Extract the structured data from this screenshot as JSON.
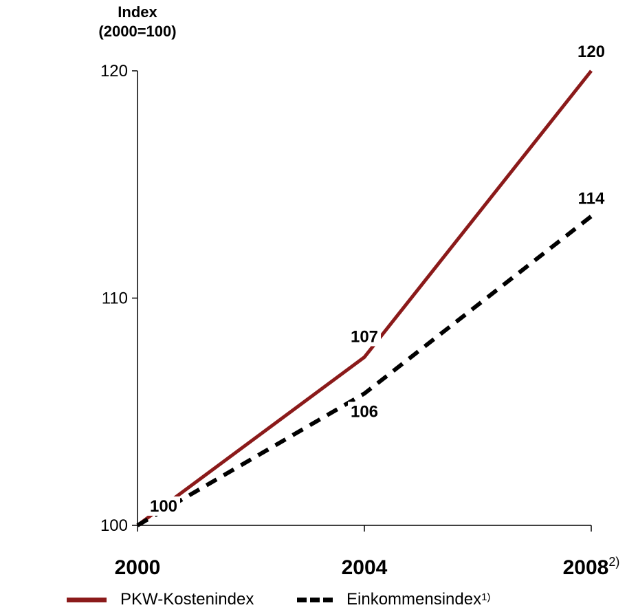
{
  "chart_data": {
    "type": "line",
    "ylabel_line1": "Index",
    "ylabel_line2": "(2000=100)",
    "ylim": [
      100,
      120
    ],
    "yticks": [
      "100",
      "110",
      "120"
    ],
    "x": [
      "2000",
      "2004",
      "2008"
    ],
    "x_footnote_last": "2)",
    "series": [
      {
        "name": "PKW-Kostenindex",
        "footnote": "",
        "color": "#8B1A1A",
        "style": "solid",
        "values": [
          100,
          107.4,
          120
        ],
        "labels": [
          "100",
          "107",
          "120"
        ]
      },
      {
        "name": "Einkommensindex",
        "footnote": "1)",
        "color": "#000000",
        "style": "dashed",
        "values": [
          100,
          105.8,
          113.6
        ],
        "labels": [
          "",
          "106",
          "114"
        ]
      }
    ]
  }
}
